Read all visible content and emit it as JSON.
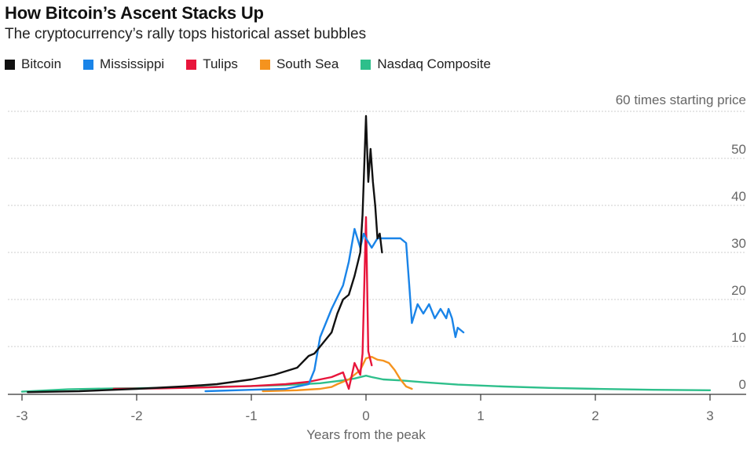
{
  "chart_data": {
    "type": "line",
    "title": "How Bitcoin’s Ascent Stacks Up",
    "subtitle": "The cryptocurrency’s rally tops historical asset bubbles",
    "xlabel": "Years from the peak",
    "ylabel": "60 times starting price",
    "xlim": [
      -3.05,
      3.15
    ],
    "ylim": [
      0,
      60
    ],
    "x_ticks": [
      -3,
      -2,
      -1,
      0,
      1,
      2,
      3
    ],
    "x_tick_labels": [
      "-3",
      "-2",
      "-1",
      "0",
      "1",
      "2",
      "3"
    ],
    "y_ticks": [
      0,
      10,
      20,
      30,
      40,
      50
    ],
    "y_tick_labels": [
      "0",
      "10",
      "20",
      "30",
      "40",
      "50"
    ],
    "grid": true,
    "legend_position": "top-left",
    "series": [
      {
        "name": "Nasdaq Composite",
        "color": "#2ebf8b",
        "x": [
          -3.0,
          -2.6,
          -2.2,
          -1.8,
          -1.4,
          -1.0,
          -0.7,
          -0.4,
          -0.2,
          -0.1,
          0.0,
          0.05,
          0.15,
          0.3,
          0.5,
          0.8,
          1.2,
          1.6,
          2.0,
          2.5,
          3.0
        ],
        "y": [
          0.4,
          0.9,
          1.1,
          1.2,
          1.4,
          1.6,
          1.8,
          2.2,
          2.8,
          3.2,
          3.8,
          3.5,
          3.0,
          2.8,
          2.4,
          1.9,
          1.5,
          1.2,
          1.0,
          0.8,
          0.7
        ]
      },
      {
        "name": "South Sea",
        "color": "#f5931e",
        "x": [
          -0.9,
          -0.6,
          -0.4,
          -0.3,
          -0.25,
          -0.15,
          -0.05,
          0.0,
          0.05,
          0.1,
          0.15,
          0.2,
          0.25,
          0.3,
          0.35,
          0.4
        ],
        "y": [
          0.5,
          0.7,
          1.0,
          1.4,
          2.0,
          3.0,
          5.0,
          7.5,
          7.8,
          7.2,
          7.0,
          6.5,
          5.0,
          3.0,
          1.5,
          1.0
        ]
      },
      {
        "name": "Tulips",
        "color": "#e8153b",
        "x": [
          -2.2,
          -1.8,
          -1.4,
          -1.0,
          -0.7,
          -0.5,
          -0.3,
          -0.2,
          -0.15,
          -0.1,
          -0.05,
          -0.03,
          0.0,
          0.02,
          0.05
        ],
        "y": [
          1.0,
          1.1,
          1.3,
          1.6,
          2.0,
          2.5,
          3.5,
          4.5,
          1.0,
          6.5,
          4.0,
          8.5,
          37.5,
          9.0,
          6.0
        ]
      },
      {
        "name": "Mississippi",
        "color": "#1a84e8",
        "x": [
          -1.4,
          -1.0,
          -0.7,
          -0.5,
          -0.45,
          -0.4,
          -0.35,
          -0.3,
          -0.2,
          -0.15,
          -0.1,
          -0.05,
          -0.02,
          0.0,
          0.05,
          0.1,
          0.2,
          0.3,
          0.35,
          0.38,
          0.4,
          0.45,
          0.5,
          0.55,
          0.6,
          0.65,
          0.7,
          0.72,
          0.75,
          0.78,
          0.8,
          0.85
        ],
        "y": [
          0.5,
          0.8,
          1.0,
          2.0,
          5.0,
          12.0,
          15.0,
          18.0,
          23.0,
          28.0,
          35.0,
          31.0,
          34.0,
          33.0,
          31.0,
          33.0,
          33.0,
          33.0,
          32.0,
          22.0,
          15.0,
          19.0,
          17.0,
          19.0,
          16.0,
          18.0,
          16.0,
          18.0,
          16.0,
          12.0,
          14.0,
          13.0
        ]
      },
      {
        "name": "Bitcoin",
        "color": "#111111",
        "x": [
          -2.95,
          -2.5,
          -2.0,
          -1.6,
          -1.3,
          -1.0,
          -0.8,
          -0.6,
          -0.5,
          -0.45,
          -0.4,
          -0.3,
          -0.25,
          -0.2,
          -0.15,
          -0.1,
          -0.05,
          -0.03,
          0.0,
          0.02,
          0.04,
          0.06,
          0.08,
          0.1,
          0.12,
          0.14
        ],
        "y": [
          0.3,
          0.5,
          1.0,
          1.5,
          2.0,
          3.0,
          4.0,
          5.5,
          8.0,
          8.5,
          10.0,
          13.0,
          17.0,
          20.0,
          21.0,
          25.0,
          30.0,
          38.0,
          59.0,
          45.0,
          52.0,
          45.0,
          40.0,
          33.0,
          34.0,
          30.0
        ]
      }
    ]
  }
}
